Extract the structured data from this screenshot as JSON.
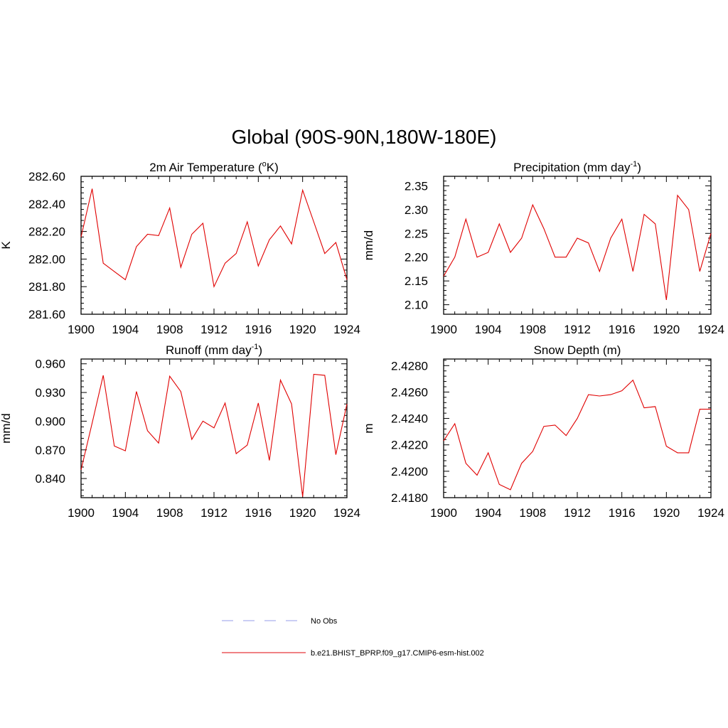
{
  "figure_title": "Global (90S-90N,180W-180E)",
  "chart_data": [
    {
      "type": "line",
      "title": "2m Air Temperature (",
      "title_sup": "o",
      "title_after": "K)",
      "xlabel": "",
      "ylabel": "K",
      "xlim": [
        1900,
        1924
      ],
      "ylim": [
        281.6,
        282.6
      ],
      "xticks": [
        "1900",
        "1904",
        "1908",
        "1912",
        "1916",
        "1920",
        "1924"
      ],
      "yticks": [
        "281.60",
        "281.80",
        "282.00",
        "282.20",
        "282.40",
        "282.60"
      ],
      "x": [
        1900,
        1901,
        1902,
        1903,
        1904,
        1905,
        1906,
        1907,
        1908,
        1909,
        1910,
        1911,
        1912,
        1913,
        1914,
        1915,
        1916,
        1917,
        1918,
        1919,
        1920,
        1921,
        1922,
        1923,
        1924
      ],
      "series": [
        {
          "name": "b.e21.BHIST_BPRP.f09_g17.CMIP6-esm-hist.002",
          "values": [
            282.16,
            282.51,
            281.97,
            281.91,
            281.85,
            282.09,
            282.18,
            282.17,
            282.37,
            281.94,
            282.18,
            282.26,
            281.8,
            281.97,
            282.04,
            282.27,
            281.95,
            282.14,
            282.24,
            282.11,
            282.5,
            282.27,
            282.04,
            282.12,
            281.85
          ]
        }
      ]
    },
    {
      "type": "line",
      "title": "Precipitation (mm day",
      "title_sup": "-1",
      "title_after": ")",
      "xlabel": "",
      "ylabel": "mm/d",
      "xlim": [
        1900,
        1924
      ],
      "ylim": [
        2.08,
        2.37
      ],
      "xticks": [
        "1900",
        "1904",
        "1908",
        "1912",
        "1916",
        "1920",
        "1924"
      ],
      "yticks": [
        "2.10",
        "2.15",
        "2.20",
        "2.25",
        "2.30",
        "2.35"
      ],
      "x": [
        1900,
        1901,
        1902,
        1903,
        1904,
        1905,
        1906,
        1907,
        1908,
        1909,
        1910,
        1911,
        1912,
        1913,
        1914,
        1915,
        1916,
        1917,
        1918,
        1919,
        1920,
        1921,
        1922,
        1923,
        1924
      ],
      "series": [
        {
          "name": "b.e21.BHIST_BPRP.f09_g17.CMIP6-esm-hist.002",
          "values": [
            2.16,
            2.2,
            2.28,
            2.2,
            2.21,
            2.27,
            2.21,
            2.24,
            2.31,
            2.26,
            2.2,
            2.2,
            2.24,
            2.23,
            2.17,
            2.24,
            2.28,
            2.17,
            2.29,
            2.27,
            2.11,
            2.33,
            2.3,
            2.17,
            2.25
          ]
        }
      ]
    },
    {
      "type": "line",
      "title": "Runoff (mm day",
      "title_sup": "-1",
      "title_after": ")",
      "xlabel": "",
      "ylabel": "mm/d",
      "xlim": [
        1900,
        1924
      ],
      "ylim": [
        0.82,
        0.965
      ],
      "xticks": [
        "1900",
        "1904",
        "1908",
        "1912",
        "1916",
        "1920",
        "1924"
      ],
      "yticks": [
        "0.840",
        "0.870",
        "0.900",
        "0.930",
        "0.960"
      ],
      "x": [
        1900,
        1901,
        1902,
        1903,
        1904,
        1905,
        1906,
        1907,
        1908,
        1909,
        1910,
        1911,
        1912,
        1913,
        1914,
        1915,
        1916,
        1917,
        1918,
        1919,
        1920,
        1921,
        1922,
        1923,
        1924
      ],
      "series": [
        {
          "name": "b.e21.BHIST_BPRP.f09_g17.CMIP6-esm-hist.002",
          "values": [
            0.849,
            0.898,
            0.948,
            0.874,
            0.869,
            0.931,
            0.89,
            0.877,
            0.947,
            0.931,
            0.881,
            0.9,
            0.893,
            0.919,
            0.866,
            0.875,
            0.919,
            0.859,
            0.943,
            0.918,
            0.821,
            0.949,
            0.948,
            0.865,
            0.918
          ]
        }
      ]
    },
    {
      "type": "line",
      "title": "Snow Depth (m)",
      "title_sup": "",
      "title_after": "",
      "xlabel": "",
      "ylabel": "m",
      "xlim": [
        1900,
        1924
      ],
      "ylim": [
        2.418,
        2.4285
      ],
      "xticks": [
        "1900",
        "1904",
        "1908",
        "1912",
        "1916",
        "1920",
        "1924"
      ],
      "yticks": [
        "2.4180",
        "2.4200",
        "2.4220",
        "2.4240",
        "2.4260",
        "2.4280"
      ],
      "x": [
        1900,
        1901,
        1902,
        1903,
        1904,
        1905,
        1906,
        1907,
        1908,
        1909,
        1910,
        1911,
        1912,
        1913,
        1914,
        1915,
        1916,
        1917,
        1918,
        1919,
        1920,
        1921,
        1922,
        1923,
        1924
      ],
      "series": [
        {
          "name": "b.e21.BHIST_BPRP.f09_g17.CMIP6-esm-hist.002",
          "values": [
            2.4223,
            2.4236,
            2.4206,
            2.4197,
            2.4214,
            2.419,
            2.4186,
            2.4206,
            2.4215,
            2.4234,
            2.4235,
            2.4227,
            2.424,
            2.4258,
            2.4257,
            2.4258,
            2.4261,
            2.4269,
            2.4248,
            2.4249,
            2.4219,
            2.4214,
            2.4214,
            2.4247,
            2.4247
          ]
        }
      ]
    }
  ],
  "legend": [
    {
      "label": "No Obs",
      "style": "dashed",
      "color": "#aab0ee"
    },
    {
      "label": "b.e21.BHIST_BPRP.f09_g17.CMIP6-esm-hist.002",
      "style": "solid",
      "color": "#e8383a"
    }
  ],
  "colors": {
    "series": "#e00000",
    "axis": "#000000"
  }
}
